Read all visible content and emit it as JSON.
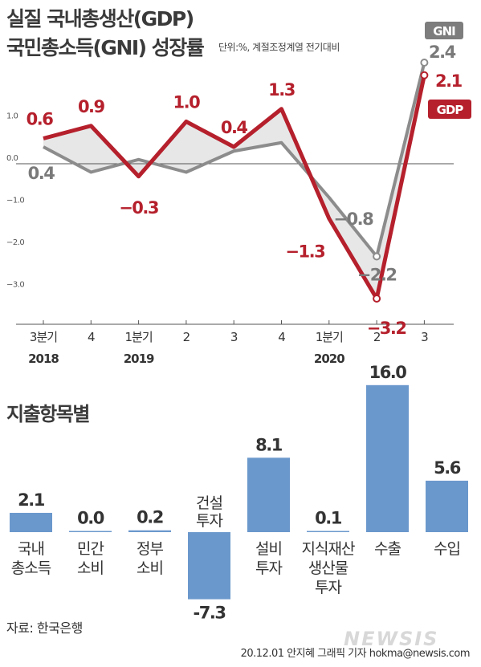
{
  "header": {
    "title_line1": "실질 국내총생산(GDP)",
    "title_line2": "국민총소득(GNI) 성장률",
    "unit_note": "단위:%, 계절조정계열 전기대비"
  },
  "chart_data": [
    {
      "type": "line",
      "categories": [
        "3분기",
        "4",
        "1분기",
        "2",
        "3",
        "4",
        "1분기",
        "2",
        "3"
      ],
      "year_labels": [
        {
          "label": "2018",
          "index": 0
        },
        {
          "label": "2019",
          "index": 2
        },
        {
          "label": "2020",
          "index": 6
        }
      ],
      "series": [
        {
          "name": "GDP",
          "color": "#b5202c",
          "values": [
            0.6,
            0.9,
            -0.3,
            1.0,
            0.4,
            1.3,
            -1.3,
            -3.2,
            2.1
          ],
          "labels": [
            "0.6",
            "0.9",
            "−0.3",
            "1.0",
            "0.4",
            "1.3",
            "−1.3",
            "−3.2",
            "2.1"
          ]
        },
        {
          "name": "GNI",
          "color": "#8c8c8c",
          "values": [
            0.4,
            -0.2,
            0.1,
            -0.2,
            0.3,
            0.5,
            -0.8,
            -2.2,
            2.4
          ],
          "labels": [
            "0.4",
            "",
            "",
            "",
            "",
            "",
            "−0.8",
            "−2.2",
            "2.4"
          ]
        }
      ],
      "y_ticks": [
        "1.0",
        "0.0",
        "−1.0",
        "−2.0",
        "−3.0"
      ],
      "ylim": [
        -3.7,
        2.6
      ],
      "grid": false
    },
    {
      "type": "bar",
      "title": "지출항목별",
      "color": "#6b98cc",
      "categories": [
        [
          "국내",
          "총소득"
        ],
        [
          "민간",
          "소비"
        ],
        [
          "정부",
          "소비"
        ],
        [
          "건설",
          "투자"
        ],
        [
          "설비",
          "투자"
        ],
        [
          "지식재산",
          "생산물",
          "투자"
        ],
        [
          "수출"
        ],
        [
          "수입"
        ]
      ],
      "values": [
        2.1,
        0.0,
        0.2,
        -7.3,
        8.1,
        0.1,
        16.0,
        5.6
      ],
      "value_labels": [
        "2.1",
        "0.0",
        "0.2",
        "-7.3",
        "8.1",
        "0.1",
        "16.0",
        "5.6"
      ]
    }
  ],
  "footer": {
    "source": "자료: 한국은행",
    "credit": "20.12.01 안지혜 그래픽 기자  hokma@newsis.com",
    "watermark": "NEWSIS"
  }
}
